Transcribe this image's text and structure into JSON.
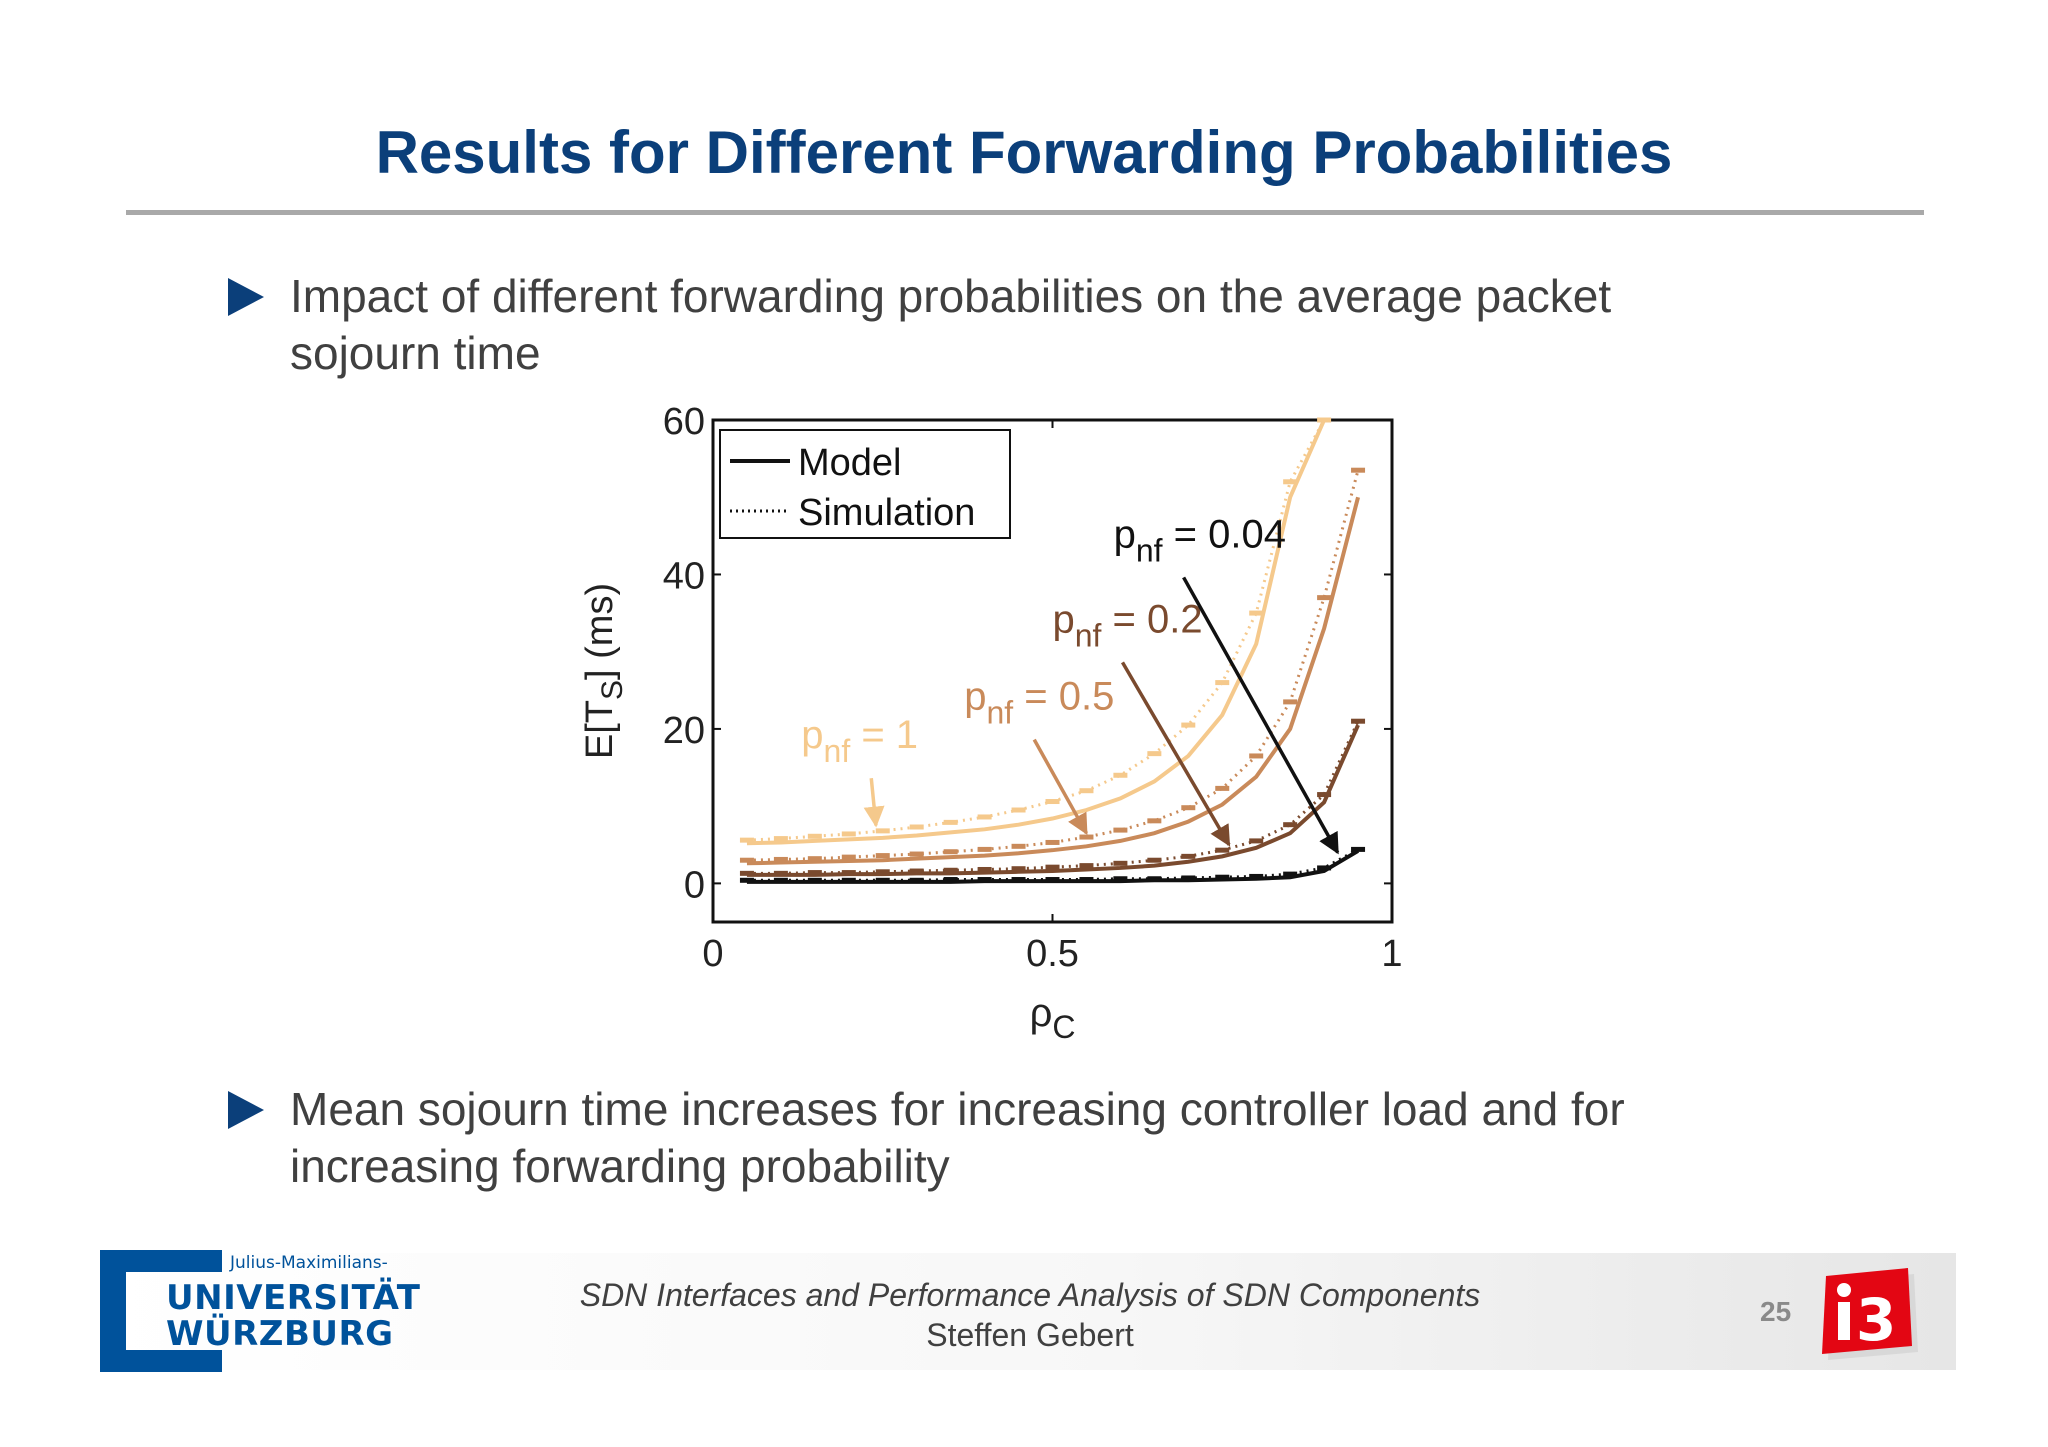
{
  "slide": {
    "title": "Results for Different Forwarding Probabilities",
    "bullets": [
      "Impact of different forwarding probabilities on the average packet sojourn time",
      "Mean sojourn time increases for increasing controller load and for increasing forwarding probability"
    ]
  },
  "footer": {
    "university_small": "Julius-Maximilians-",
    "university_line1": "UNIVERSITÄT",
    "university_line2": "WÜRZBURG",
    "course_title": "SDN Interfaces and Performance Analysis of SDN Components",
    "author": "Steffen Gebert",
    "page_number": "25",
    "i3_logo": "i3"
  },
  "chart_data": {
    "type": "line",
    "xlabel": "ρC",
    "ylabel": "E[TS] (ms)",
    "xlim": [
      0,
      1
    ],
    "ylim": [
      -5,
      60
    ],
    "xticks": [
      "0",
      "0.5",
      "1"
    ],
    "yticks": [
      "0",
      "20",
      "40",
      "60"
    ],
    "legend": {
      "position": "top-left",
      "entries": [
        "Model",
        "Simulation"
      ]
    },
    "x": [
      0.05,
      0.1,
      0.15,
      0.2,
      0.25,
      0.3,
      0.35,
      0.4,
      0.45,
      0.5,
      0.55,
      0.6,
      0.65,
      0.7,
      0.75,
      0.8,
      0.85,
      0.9,
      0.95
    ],
    "series": [
      {
        "label_sub": "nf",
        "label_value": " = 1",
        "color": "#f5c98c",
        "model": [
          5.2,
          5.3,
          5.5,
          5.7,
          5.9,
          6.2,
          6.6,
          7.0,
          7.6,
          8.4,
          9.5,
          11.0,
          13.2,
          16.5,
          21.8,
          31.0,
          50.0,
          60.0,
          null
        ],
        "simulation": [
          5.6,
          5.8,
          6.1,
          6.4,
          6.8,
          7.3,
          7.9,
          8.6,
          9.5,
          10.6,
          12.0,
          14.0,
          16.8,
          20.5,
          26.0,
          35.0,
          52.0,
          60.0,
          null
        ]
      },
      {
        "label_sub": "nf",
        "label_value": " = 0.5",
        "color": "#c98a5a",
        "model": [
          2.6,
          2.7,
          2.8,
          2.9,
          3.0,
          3.2,
          3.4,
          3.6,
          3.9,
          4.3,
          4.8,
          5.5,
          6.5,
          8.0,
          10.2,
          13.8,
          20.0,
          33.0,
          50.0
        ],
        "simulation": [
          3.0,
          3.1,
          3.2,
          3.4,
          3.6,
          3.8,
          4.1,
          4.4,
          4.8,
          5.3,
          6.0,
          6.9,
          8.1,
          9.8,
          12.3,
          16.5,
          23.5,
          37.0,
          53.5
        ]
      },
      {
        "label_sub": "nf",
        "label_value": " = 0.2",
        "color": "#7a4a2e",
        "model": [
          1.1,
          1.1,
          1.1,
          1.2,
          1.2,
          1.3,
          1.3,
          1.4,
          1.5,
          1.6,
          1.8,
          2.0,
          2.3,
          2.8,
          3.5,
          4.6,
          6.5,
          10.5,
          20.5
        ],
        "simulation": [
          1.3,
          1.3,
          1.4,
          1.4,
          1.5,
          1.6,
          1.7,
          1.8,
          1.9,
          2.1,
          2.3,
          2.6,
          3.0,
          3.5,
          4.3,
          5.5,
          7.6,
          11.5,
          21.0
        ]
      },
      {
        "label_sub": "nf",
        "label_value": " = 0.04",
        "color": "#111111",
        "model": [
          0.2,
          0.2,
          0.2,
          0.2,
          0.2,
          0.2,
          0.2,
          0.3,
          0.3,
          0.3,
          0.3,
          0.3,
          0.4,
          0.4,
          0.5,
          0.6,
          0.8,
          1.6,
          4.2
        ],
        "simulation": [
          0.4,
          0.4,
          0.4,
          0.4,
          0.4,
          0.4,
          0.5,
          0.5,
          0.5,
          0.5,
          0.5,
          0.6,
          0.6,
          0.7,
          0.8,
          0.9,
          1.2,
          2.0,
          4.4
        ]
      }
    ],
    "annotations": [
      {
        "series": 0,
        "text_x": 0.13,
        "text_y": 17.5,
        "arrow_to": [
          0.24,
          7.5
        ]
      },
      {
        "series": 1,
        "text_x": 0.37,
        "text_y": 22.5,
        "arrow_to": [
          0.55,
          6.5
        ]
      },
      {
        "series": 2,
        "text_x": 0.5,
        "text_y": 32.5,
        "arrow_to": [
          0.76,
          5.0
        ]
      },
      {
        "series": 3,
        "text_x": 0.59,
        "text_y": 43.5,
        "arrow_to": [
          0.92,
          4.0
        ]
      }
    ]
  }
}
